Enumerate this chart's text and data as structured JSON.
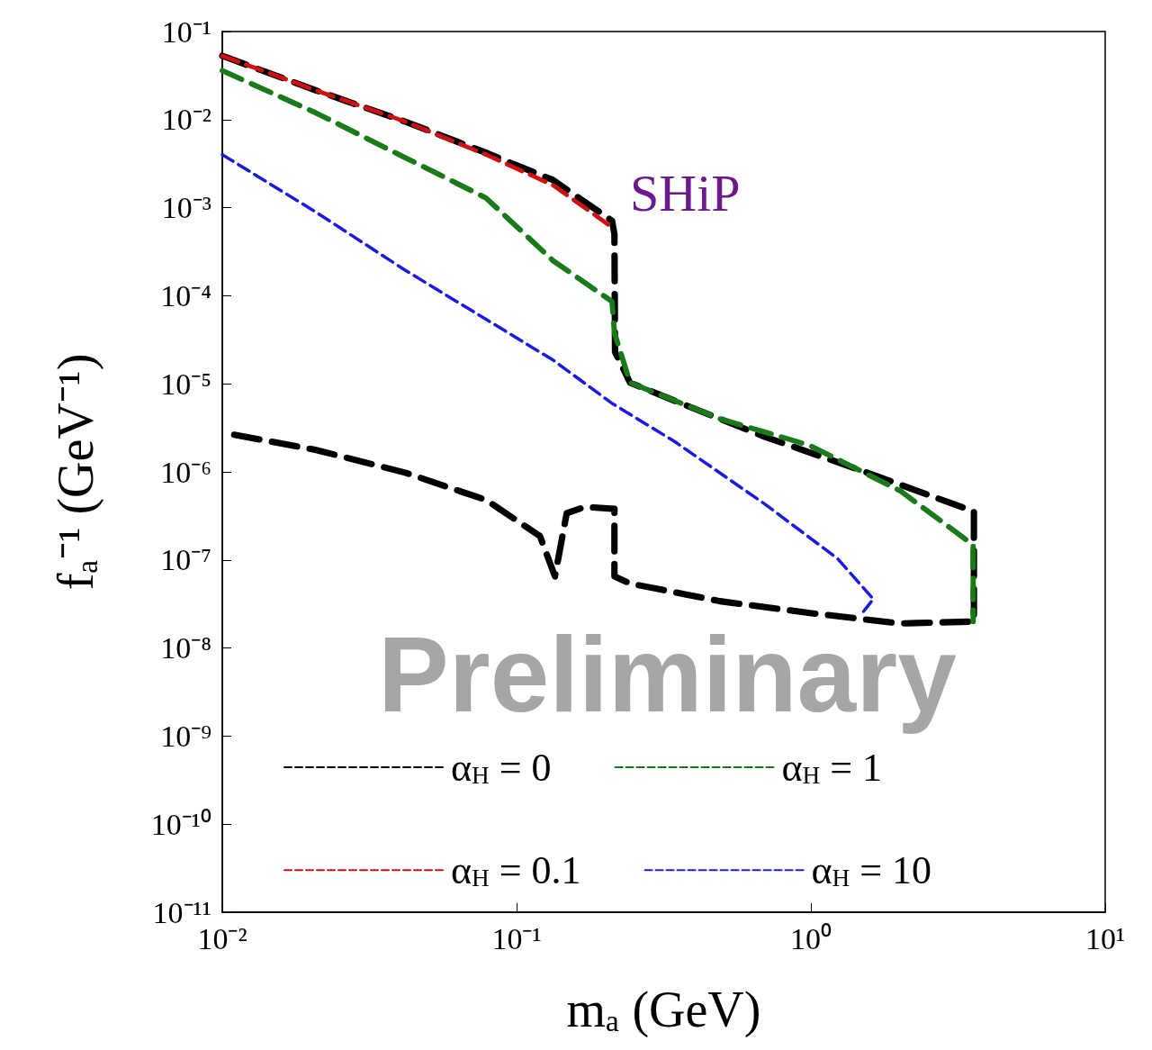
{
  "chart_data": {
    "type": "line",
    "xlabel": "mₐ (GeV)",
    "ylabel": "fₐ⁻¹ (GeV⁻¹)",
    "log": "xy",
    "line_style": "dashed",
    "marker": "none",
    "grid": false,
    "legend": "bottom",
    "xlim": [
      0.01,
      10
    ],
    "xticks": [
      {
        "value": 0.01,
        "label": "10⁻²"
      },
      {
        "value": 0.1,
        "label": "10⁻¹"
      },
      {
        "value": 1,
        "label": "10⁰"
      },
      {
        "value": 10,
        "label": "10¹"
      }
    ],
    "ylim": [
      1e-11,
      0.1
    ],
    "yticks": [
      {
        "value": 1e-11,
        "label": "10⁻¹¹"
      },
      {
        "value": 1e-10,
        "label": "10⁻¹⁰"
      },
      {
        "value": 1e-09,
        "label": "10⁻⁹"
      },
      {
        "value": 1e-08,
        "label": "10⁻⁸"
      },
      {
        "value": 1e-07,
        "label": "10⁻⁷"
      },
      {
        "value": 1e-06,
        "label": "10⁻⁶"
      },
      {
        "value": 1e-05,
        "label": "10⁻⁵"
      },
      {
        "value": 0.0001,
        "label": "10⁻⁴"
      },
      {
        "value": 0.001,
        "label": "10⁻³"
      },
      {
        "value": 0.01,
        "label": "10⁻²"
      },
      {
        "value": 0.1,
        "label": "10⁻¹"
      }
    ],
    "annotations": [
      "SHiP",
      "Preliminary"
    ],
    "series": [
      {
        "name": "α$_{H}$ = 0",
        "color": "#000000",
        "x": [
          0.01,
          0.0207,
          0.0418,
          0.0787,
          0.133,
          0.211,
          0.215,
          0.216,
          0.243,
          0.345,
          0.698,
          1.41,
          3.58,
          3.58,
          2.01,
          0.99,
          0.491,
          0.243,
          0.215,
          0.215,
          0.171,
          0.148,
          0.135,
          0.12,
          0.0787,
          0.0418,
          0.0207,
          0.01
        ],
        "values": [
          0.053,
          0.0216,
          0.0095,
          0.0042,
          0.00206,
          0.00071,
          0.0005,
          2.3e-05,
          1.03e-05,
          6.4e-06,
          2.5e-06,
          1.1e-06,
          3.55e-07,
          2e-08,
          1.9e-08,
          2.5e-08,
          3.4e-08,
          5.4e-08,
          6.5e-08,
          3.8e-07,
          4e-07,
          3.4e-07,
          6.5e-08,
          1.87e-07,
          4.8e-07,
          9.8e-07,
          1.78e-06,
          2.8e-06
        ]
      },
      {
        "name": "α$_{H}$ = 1",
        "color": "#1a7a1a",
        "x": [
          0.01,
          0.0207,
          0.0418,
          0.0787,
          0.133,
          0.211,
          0.215,
          0.243,
          0.491,
          0.99,
          2.01,
          3.56,
          3.56
        ],
        "values": [
          0.036,
          0.012,
          0.0037,
          0.00129,
          0.00025,
          8.6e-05,
          3.8e-05,
          1.03e-05,
          4e-06,
          2e-06,
          6.1e-07,
          1.48e-07,
          2e-08
        ]
      },
      {
        "name": "α$_{H}$ = 0.1",
        "color": "#d01010",
        "x": [
          0.01,
          0.0207,
          0.0418,
          0.0787,
          0.133,
          0.211
        ],
        "values": [
          0.053,
          0.0216,
          0.0095,
          0.004,
          0.0018,
          0.0006
        ]
      },
      {
        "name": "α$_{H}$ = 10",
        "color": "#1a1ae0",
        "x": [
          0.01,
          0.0207,
          0.0418,
          0.0787,
          0.133,
          0.211,
          0.345,
          0.698,
          1.23,
          1.63,
          1.51
        ],
        "values": [
          0.004,
          0.0009,
          0.000195,
          5.4e-05,
          1.86e-05,
          6e-06,
          2.2e-06,
          4.3e-07,
          1.04e-07,
          3.6e-08,
          2.6e-08
        ]
      }
    ]
  }
}
